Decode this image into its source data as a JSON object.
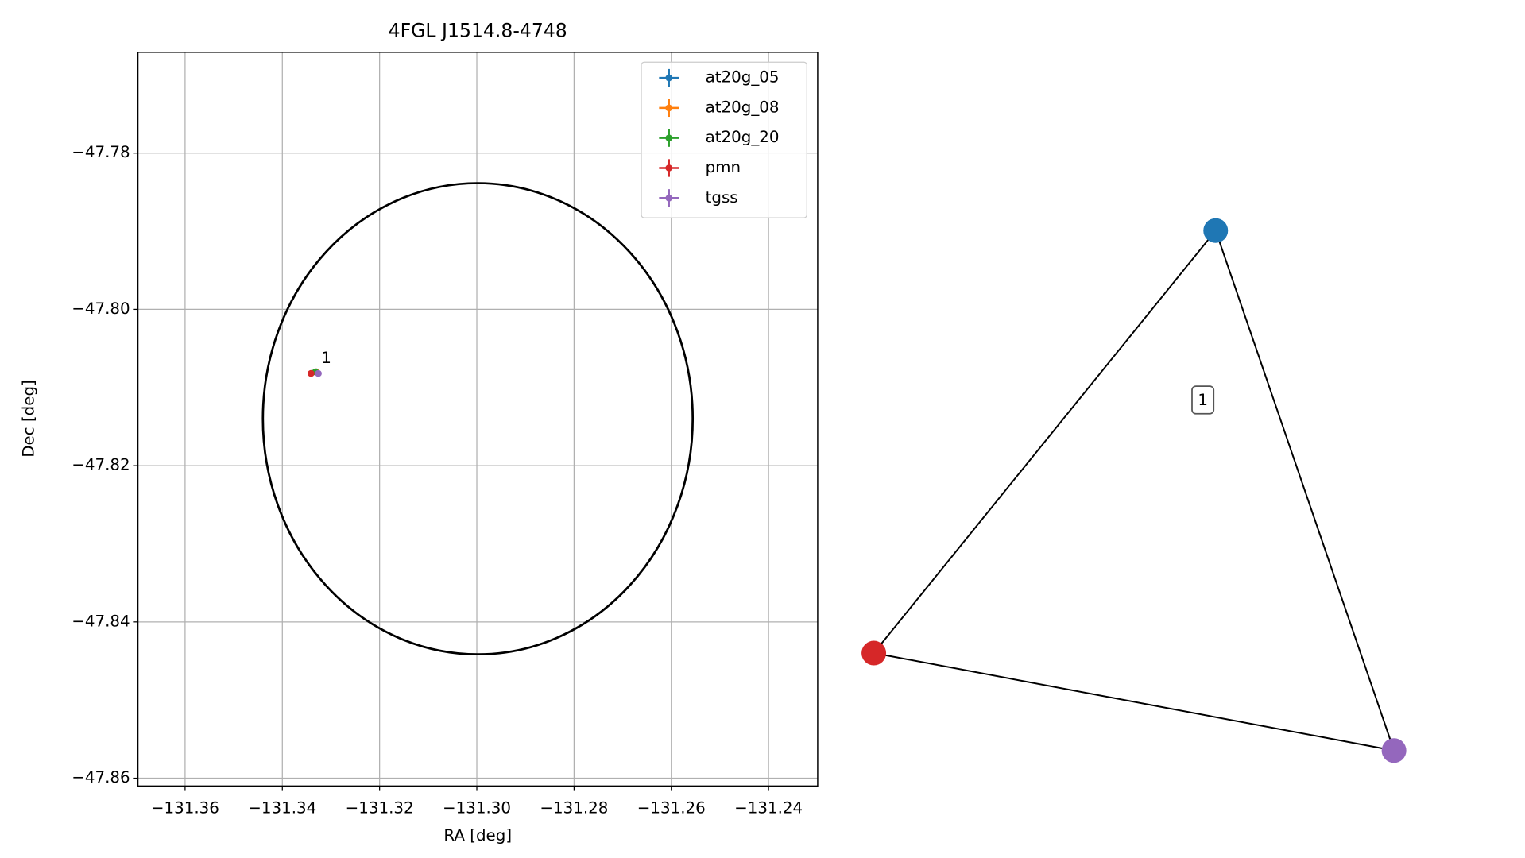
{
  "chart_data": [
    {
      "type": "scatter",
      "title": "4FGL J1514.8-4748",
      "x_label": "RA [deg]",
      "y_label": "Dec [deg]",
      "xlim": [
        -131.3697,
        -131.2299
      ],
      "ylim": [
        -47.861,
        -47.7671
      ],
      "xticks": [
        {
          "value": -131.36,
          "label": "−131.36"
        },
        {
          "value": -131.34,
          "label": "−131.34"
        },
        {
          "value": -131.32,
          "label": "−131.32"
        },
        {
          "value": -131.3,
          "label": "−131.30"
        },
        {
          "value": -131.28,
          "label": "−131.28"
        },
        {
          "value": -131.26,
          "label": "−131.26"
        },
        {
          "value": -131.24,
          "label": "−131.24"
        }
      ],
      "yticks": [
        {
          "value": -47.78,
          "label": "−47.78"
        },
        {
          "value": -47.8,
          "label": "−47.80"
        },
        {
          "value": -47.82,
          "label": "−47.82"
        },
        {
          "value": -47.84,
          "label": "−47.84"
        },
        {
          "value": -47.86,
          "label": "−47.86"
        }
      ],
      "grid": true,
      "legend": "upper right",
      "series": [
        {
          "name": "at20g_05",
          "color": "#1f77b4",
          "x": [
            -131.333
          ],
          "y": [
            -47.808
          ]
        },
        {
          "name": "at20g_08",
          "color": "#ff7f0e",
          "x": [
            -131.333
          ],
          "y": [
            -47.808
          ]
        },
        {
          "name": "at20g_20",
          "color": "#2ca02c",
          "x": [
            -131.3332
          ],
          "y": [
            -47.808
          ]
        },
        {
          "name": "pmn",
          "color": "#d62728",
          "x": [
            -131.3341
          ],
          "y": [
            -47.8082
          ]
        },
        {
          "name": "tgss",
          "color": "#9467bd",
          "x": [
            -131.3326
          ],
          "y": [
            -47.8082
          ]
        }
      ],
      "ellipse": {
        "x": -131.2998,
        "y": -47.814,
        "width": 0.0884,
        "height": 0.0603,
        "color": "#000000"
      },
      "annotations": [
        {
          "text": "1",
          "x": -131.3326,
          "y": -47.8082
        }
      ]
    },
    {
      "type": "network",
      "label": "1",
      "nodes": [
        {
          "color": "#1f77b4"
        },
        {
          "color": "#d62728"
        },
        {
          "color": "#9467bd"
        }
      ],
      "edges": [
        [
          0,
          1
        ],
        [
          0,
          2
        ],
        [
          1,
          2
        ]
      ]
    }
  ]
}
